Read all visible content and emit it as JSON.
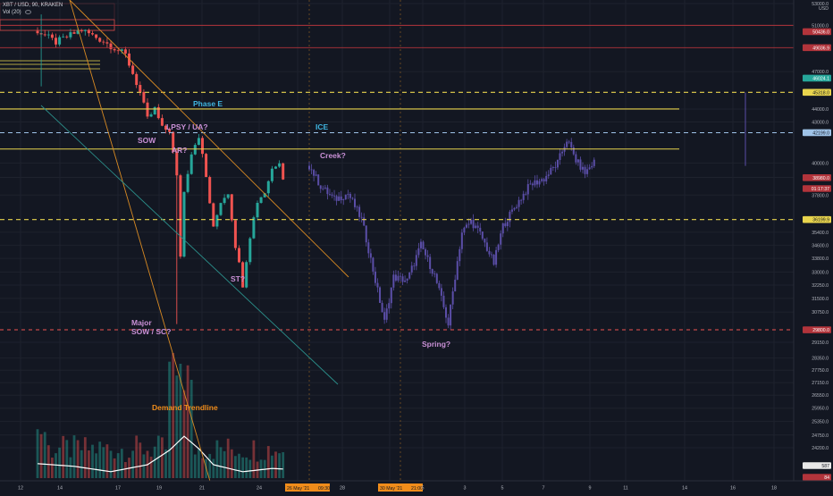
{
  "header": {
    "symbol_line": "XBT / USD, 90, KRAKEN",
    "volume_label": "Vol (20)"
  },
  "colors": {
    "background": "#131722",
    "grid": "#1e222d",
    "candle_up": "#26a69a",
    "candle_down": "#ef5350",
    "projection": "#5b4ea8",
    "yellow_line": "#e8d44d",
    "red_line": "#b2343b",
    "blue_dash": "#9fc3e8",
    "orange_line": "#d88a23",
    "teal_line": "#2b8f8a",
    "annotation_purple": "#c990d6",
    "annotation_blue": "#3fb5e0",
    "annotation_orange": "#f08c1a"
  },
  "chart_data": {
    "type": "candlestick",
    "title": "XBT / USD, 90, KRAKEN",
    "currency": "USD",
    "ylim": [
      23800,
      54000
    ],
    "y_scale": "log",
    "x_tick_labels": [
      "12",
      "14",
      "17",
      "19",
      "21",
      "24",
      "26 May '21",
      "28",
      "30 May '21",
      "3",
      "5",
      "7",
      "9",
      "11",
      "14",
      "16",
      "18"
    ],
    "x_time_labels": [
      "09:30",
      "21:00"
    ],
    "y_tick_labels": [
      "53000.0",
      "51000.0",
      "47000.0",
      "44000.0",
      "43000.0",
      "40000.0",
      "39000.0",
      "37800.0",
      "35400.0",
      "34600.0",
      "33800.0",
      "33000.0",
      "32250.0",
      "31500.0",
      "30750.0",
      "29150.0",
      "28350.0",
      "27750.0",
      "27150.0",
      "26550.0",
      "25950.0",
      "25350.0",
      "24750.0",
      "24200.0"
    ],
    "price_badges": [
      {
        "value": "50436.0",
        "kind": "red"
      },
      {
        "value": "49036.9",
        "kind": "red"
      },
      {
        "value": "46024.1",
        "kind": "green"
      },
      {
        "value": "45318.0",
        "kind": "yellow"
      },
      {
        "value": "42199.0",
        "kind": "blue"
      },
      {
        "value": "38980.0",
        "kind": "red"
      },
      {
        "value": "36199.9",
        "kind": "yellow"
      },
      {
        "value": "29800.0",
        "kind": "red"
      }
    ],
    "small_badges": [
      {
        "value": "01:17:37",
        "kind": "red"
      },
      {
        "value": "587",
        "kind": "white"
      },
      {
        "value": "84",
        "kind": "red"
      }
    ],
    "levels": [
      {
        "price": 51000,
        "style": "red-solid"
      },
      {
        "price": 49036.9,
        "style": "red-solid"
      },
      {
        "price": 45318,
        "style": "yellow-dashed"
      },
      {
        "price": 44000,
        "style": "yellow-solid"
      },
      {
        "price": 42199,
        "style": "blue-dashed"
      },
      {
        "price": 41000,
        "style": "yellow-solid"
      },
      {
        "price": 36199.9,
        "style": "yellow-dashed"
      },
      {
        "price": 29800,
        "style": "red-dashed"
      }
    ],
    "annotations": [
      {
        "text": "Phase E",
        "color": "blue"
      },
      {
        "text": "LPSY / UA?",
        "color": "purple"
      },
      {
        "text": "ICE",
        "color": "blue"
      },
      {
        "text": "SOW",
        "color": "purple"
      },
      {
        "text": "AR?",
        "color": "purple"
      },
      {
        "text": "Creek?",
        "color": "purple"
      },
      {
        "text": "ST?",
        "color": "purple"
      },
      {
        "text": "Major",
        "color": "purple"
      },
      {
        "text": "SOW / SC?",
        "color": "purple"
      },
      {
        "text": "Spring?",
        "color": "purple"
      },
      {
        "text": "Demand Trendline",
        "color": "orange"
      }
    ],
    "series": [
      {
        "name": "price_actual",
        "anchors": [
          [
            0,
            50500
          ],
          [
            5,
            49500
          ],
          [
            12,
            50600
          ],
          [
            18,
            49600
          ],
          [
            24,
            48400
          ],
          [
            28,
            45300
          ],
          [
            30,
            43200
          ],
          [
            32,
            44000
          ],
          [
            34,
            42500
          ],
          [
            36,
            42400
          ],
          [
            38,
            39000
          ],
          [
            39,
            34000
          ],
          [
            40,
            38000
          ],
          [
            42,
            40800
          ],
          [
            44,
            42000
          ],
          [
            46,
            39000
          ],
          [
            48,
            35600
          ],
          [
            50,
            37400
          ],
          [
            52,
            38000
          ],
          [
            54,
            34600
          ],
          [
            56,
            32300
          ],
          [
            58,
            35200
          ],
          [
            60,
            37400
          ],
          [
            62,
            38000
          ],
          [
            64,
            39600
          ],
          [
            66,
            40200
          ],
          [
            67,
            39000
          ]
        ]
      },
      {
        "name": "price_projection",
        "anchors": [
          [
            67,
            39800
          ],
          [
            72,
            38400
          ],
          [
            78,
            37500
          ],
          [
            84,
            37900
          ],
          [
            90,
            36200
          ],
          [
            96,
            32500
          ],
          [
            100,
            30200
          ],
          [
            104,
            32700
          ],
          [
            110,
            32500
          ],
          [
            116,
            34600
          ],
          [
            122,
            32800
          ],
          [
            128,
            30100
          ],
          [
            134,
            35400
          ],
          [
            138,
            36100
          ],
          [
            142,
            35300
          ],
          [
            148,
            33500
          ],
          [
            152,
            35800
          ],
          [
            158,
            37200
          ],
          [
            164,
            38500
          ],
          [
            170,
            38900
          ],
          [
            176,
            40000
          ],
          [
            180,
            41700
          ],
          [
            184,
            40200
          ],
          [
            188,
            39300
          ],
          [
            192,
            40100
          ]
        ]
      },
      {
        "name": "volume_ma",
        "anchors": [
          [
            0,
            0.27
          ],
          [
            10,
            0.22
          ],
          [
            20,
            0.12
          ],
          [
            30,
            0.25
          ],
          [
            36,
            0.52
          ],
          [
            40,
            0.78
          ],
          [
            44,
            0.55
          ],
          [
            48,
            0.25
          ],
          [
            56,
            0.12
          ],
          [
            64,
            0.18
          ],
          [
            67,
            0.17
          ]
        ]
      }
    ]
  }
}
